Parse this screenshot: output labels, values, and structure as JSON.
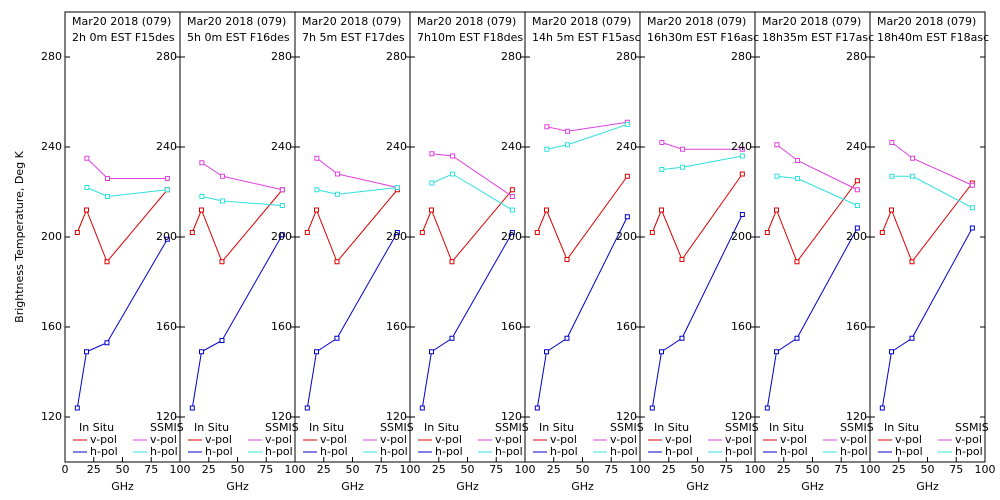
{
  "chart_data": [
    {
      "type": "line",
      "title": "Mar20 2018 (079)",
      "subtitle": "2h 0m  EST F15des",
      "ylabel": "Brightness Temperature, Deg K",
      "xlabel": "GHz",
      "xlim": [
        0,
        100
      ],
      "xticks": [
        0,
        25,
        50,
        75,
        100
      ],
      "ylim": [
        100,
        300
      ],
      "yticks": [
        120,
        160,
        200,
        240,
        280
      ],
      "series": [
        {
          "name": "v-pol",
          "group": "In Situ",
          "color": "#dd0000",
          "x": [
            10.7,
            18.7,
            36.5,
            89
          ],
          "values": [
            202,
            212,
            189,
            221
          ]
        },
        {
          "name": "h-pol",
          "group": "In Situ",
          "color": "#0000cc",
          "x": [
            10.7,
            18.7,
            36.5,
            89
          ],
          "values": [
            124,
            149,
            153,
            199
          ]
        },
        {
          "name": "v-pol",
          "group": "SSMIS",
          "color": "#e040e0",
          "x": [
            19,
            37,
            89
          ],
          "values": [
            235,
            226,
            226
          ]
        },
        {
          "name": "h-pol",
          "group": "SSMIS",
          "color": "#30e0e0",
          "x": [
            19,
            37,
            89
          ],
          "values": [
            222,
            218,
            221
          ]
        }
      ]
    },
    {
      "type": "line",
      "title": "Mar20 2018 (079)",
      "subtitle": "5h 0m  EST F16des",
      "xlabel": "GHz",
      "xlim": [
        0,
        100
      ],
      "xticks": [
        25,
        50,
        75,
        100
      ],
      "ylim": [
        100,
        300
      ],
      "yticks": [
        120,
        160,
        200,
        240,
        280
      ],
      "series": [
        {
          "name": "v-pol",
          "group": "In Situ",
          "color": "#dd0000",
          "x": [
            10.7,
            18.7,
            36.5,
            89
          ],
          "values": [
            202,
            212,
            189,
            221
          ]
        },
        {
          "name": "h-pol",
          "group": "In Situ",
          "color": "#0000cc",
          "x": [
            10.7,
            18.7,
            36.5,
            89
          ],
          "values": [
            124,
            149,
            154,
            201
          ]
        },
        {
          "name": "v-pol",
          "group": "SSMIS",
          "color": "#e040e0",
          "x": [
            19,
            37,
            89
          ],
          "values": [
            233,
            227,
            221
          ]
        },
        {
          "name": "h-pol",
          "group": "SSMIS",
          "color": "#30e0e0",
          "x": [
            19,
            37,
            89
          ],
          "values": [
            218,
            216,
            214
          ]
        }
      ]
    },
    {
      "type": "line",
      "title": "Mar20 2018 (079)",
      "subtitle": "7h 5m  EST F17des",
      "xlabel": "GHz",
      "xlim": [
        0,
        100
      ],
      "xticks": [
        25,
        50,
        75,
        100
      ],
      "ylim": [
        100,
        300
      ],
      "yticks": [
        120,
        160,
        200,
        240,
        280
      ],
      "series": [
        {
          "name": "v-pol",
          "group": "In Situ",
          "color": "#dd0000",
          "x": [
            10.7,
            18.7,
            36.5,
            89
          ],
          "values": [
            202,
            212,
            189,
            221
          ]
        },
        {
          "name": "h-pol",
          "group": "In Situ",
          "color": "#0000cc",
          "x": [
            10.7,
            18.7,
            36.5,
            89
          ],
          "values": [
            124,
            149,
            155,
            202
          ]
        },
        {
          "name": "v-pol",
          "group": "SSMIS",
          "color": "#e040e0",
          "x": [
            19,
            37,
            89
          ],
          "values": [
            235,
            228,
            222
          ]
        },
        {
          "name": "h-pol",
          "group": "SSMIS",
          "color": "#30e0e0",
          "x": [
            19,
            37,
            89
          ],
          "values": [
            221,
            219,
            222
          ]
        }
      ]
    },
    {
      "type": "line",
      "title": "Mar20 2018 (079)",
      "subtitle": "7h10m  EST F18des",
      "xlabel": "GHz",
      "xlim": [
        0,
        100
      ],
      "xticks": [
        25,
        50,
        75,
        100
      ],
      "ylim": [
        100,
        300
      ],
      "yticks": [
        120,
        160,
        200,
        240,
        280
      ],
      "series": [
        {
          "name": "v-pol",
          "group": "In Situ",
          "color": "#dd0000",
          "x": [
            10.7,
            18.7,
            36.5,
            89
          ],
          "values": [
            202,
            212,
            189,
            221
          ]
        },
        {
          "name": "h-pol",
          "group": "In Situ",
          "color": "#0000cc",
          "x": [
            10.7,
            18.7,
            36.5,
            89
          ],
          "values": [
            124,
            149,
            155,
            202
          ]
        },
        {
          "name": "v-pol",
          "group": "SSMIS",
          "color": "#e040e0",
          "x": [
            19,
            37,
            89
          ],
          "values": [
            237,
            236,
            218
          ]
        },
        {
          "name": "h-pol",
          "group": "SSMIS",
          "color": "#30e0e0",
          "x": [
            19,
            37,
            89
          ],
          "values": [
            224,
            228,
            212
          ]
        }
      ]
    },
    {
      "type": "line",
      "title": "Mar20 2018 (079)",
      "subtitle": "14h 5m  EST F15asc",
      "xlabel": "GHz",
      "xlim": [
        0,
        100
      ],
      "xticks": [
        25,
        50,
        75,
        100
      ],
      "ylim": [
        100,
        300
      ],
      "yticks": [
        120,
        160,
        200,
        240,
        280
      ],
      "series": [
        {
          "name": "v-pol",
          "group": "In Situ",
          "color": "#dd0000",
          "x": [
            10.7,
            18.7,
            36.5,
            89
          ],
          "values": [
            202,
            212,
            190,
            227
          ]
        },
        {
          "name": "h-pol",
          "group": "In Situ",
          "color": "#0000cc",
          "x": [
            10.7,
            18.7,
            36.5,
            89
          ],
          "values": [
            124,
            149,
            155,
            209
          ]
        },
        {
          "name": "v-pol",
          "group": "SSMIS",
          "color": "#e040e0",
          "x": [
            19,
            37,
            89
          ],
          "values": [
            249,
            247,
            251
          ]
        },
        {
          "name": "h-pol",
          "group": "SSMIS",
          "color": "#30e0e0",
          "x": [
            19,
            37,
            89
          ],
          "values": [
            239,
            241,
            250
          ]
        }
      ]
    },
    {
      "type": "line",
      "title": "Mar20 2018 (079)",
      "subtitle": "16h30m  EST F16asc",
      "xlabel": "GHz",
      "xlim": [
        0,
        100
      ],
      "xticks": [
        25,
        50,
        75,
        100
      ],
      "ylim": [
        100,
        300
      ],
      "yticks": [
        120,
        160,
        200,
        240,
        280
      ],
      "series": [
        {
          "name": "v-pol",
          "group": "In Situ",
          "color": "#dd0000",
          "x": [
            10.7,
            18.7,
            36.5,
            89
          ],
          "values": [
            202,
            212,
            190,
            228
          ]
        },
        {
          "name": "h-pol",
          "group": "In Situ",
          "color": "#0000cc",
          "x": [
            10.7,
            18.7,
            36.5,
            89
          ],
          "values": [
            124,
            149,
            155,
            210
          ]
        },
        {
          "name": "v-pol",
          "group": "SSMIS",
          "color": "#e040e0",
          "x": [
            19,
            37,
            89
          ],
          "values": [
            242,
            239,
            239
          ]
        },
        {
          "name": "h-pol",
          "group": "SSMIS",
          "color": "#30e0e0",
          "x": [
            19,
            37,
            89
          ],
          "values": [
            230,
            231,
            236
          ]
        }
      ]
    },
    {
      "type": "line",
      "title": "Mar20 2018 (079)",
      "subtitle": "18h35m  EST F17asc",
      "xlabel": "GHz",
      "xlim": [
        0,
        100
      ],
      "xticks": [
        25,
        50,
        75,
        100
      ],
      "ylim": [
        100,
        300
      ],
      "yticks": [
        120,
        160,
        200,
        240,
        280
      ],
      "series": [
        {
          "name": "v-pol",
          "group": "In Situ",
          "color": "#dd0000",
          "x": [
            10.7,
            18.7,
            36.5,
            89
          ],
          "values": [
            202,
            212,
            189,
            225
          ]
        },
        {
          "name": "h-pol",
          "group": "In Situ",
          "color": "#0000cc",
          "x": [
            10.7,
            18.7,
            36.5,
            89
          ],
          "values": [
            124,
            149,
            155,
            204
          ]
        },
        {
          "name": "v-pol",
          "group": "SSMIS",
          "color": "#e040e0",
          "x": [
            19,
            37,
            89
          ],
          "values": [
            241,
            234,
            221
          ]
        },
        {
          "name": "h-pol",
          "group": "SSMIS",
          "color": "#30e0e0",
          "x": [
            19,
            37,
            89
          ],
          "values": [
            227,
            226,
            214
          ]
        }
      ]
    },
    {
      "type": "line",
      "title": "Mar20 2018 (079)",
      "subtitle": "18h40m  EST F18asc",
      "xlabel": "GHz",
      "xlim": [
        0,
        100
      ],
      "xticks": [
        25,
        50,
        75,
        100
      ],
      "ylim": [
        100,
        300
      ],
      "yticks": [
        120,
        160,
        200,
        240,
        280
      ],
      "series": [
        {
          "name": "v-pol",
          "group": "In Situ",
          "color": "#dd0000",
          "x": [
            10.7,
            18.7,
            36.5,
            89
          ],
          "values": [
            202,
            212,
            189,
            224
          ]
        },
        {
          "name": "h-pol",
          "group": "In Situ",
          "color": "#0000cc",
          "x": [
            10.7,
            18.7,
            36.5,
            89
          ],
          "values": [
            124,
            149,
            155,
            204
          ]
        },
        {
          "name": "v-pol",
          "group": "SSMIS",
          "color": "#e040e0",
          "x": [
            19,
            37,
            89
          ],
          "values": [
            242,
            235,
            223
          ]
        },
        {
          "name": "h-pol",
          "group": "SSMIS",
          "color": "#30e0e0",
          "x": [
            19,
            37,
            89
          ],
          "values": [
            227,
            227,
            213
          ]
        }
      ]
    }
  ]
}
